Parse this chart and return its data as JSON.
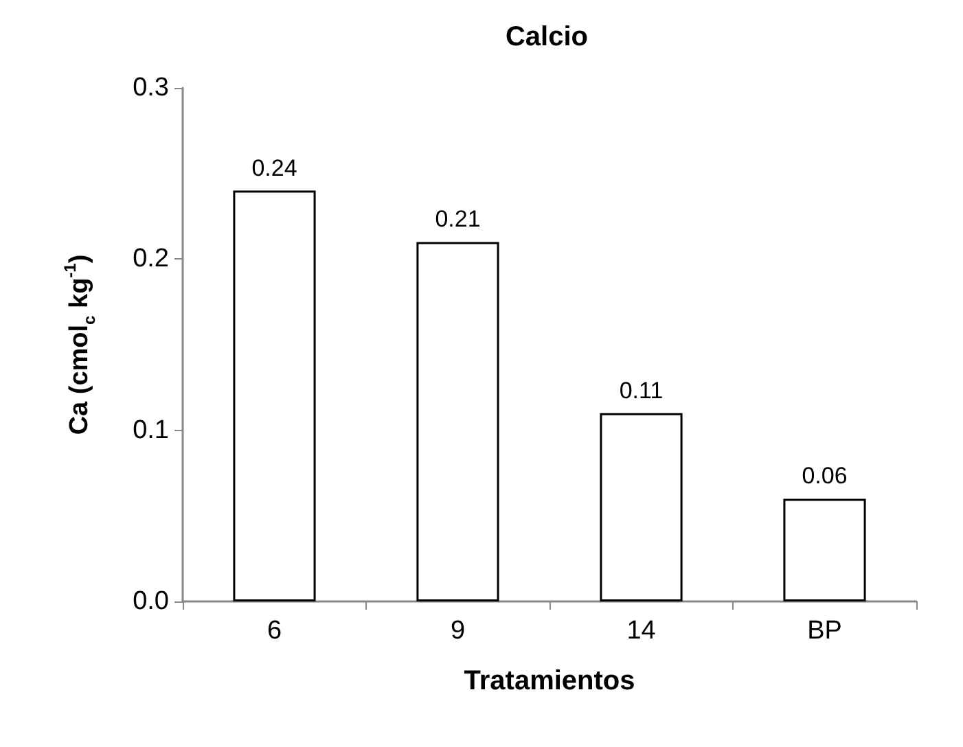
{
  "chart_data": {
    "type": "bar",
    "title": "Calcio",
    "xlabel": "Tratamientos",
    "ylabel": "Ca (cmol$_{c}$ kg$^{-1}$)",
    "categories": [
      "6",
      "9",
      "14",
      "BP"
    ],
    "values": [
      0.24,
      0.21,
      0.11,
      0.06
    ],
    "color": "#ffffff",
    "ylim": [
      0,
      0.3
    ],
    "yticks": [
      {
        "value": 0,
        "label": "0.0"
      },
      {
        "value": 0.1,
        "label": "0.1"
      },
      {
        "value": 0.2,
        "label": "0.2"
      },
      {
        "value": 0.3,
        "label": "0.3"
      }
    ],
    "data_labels": true
  }
}
